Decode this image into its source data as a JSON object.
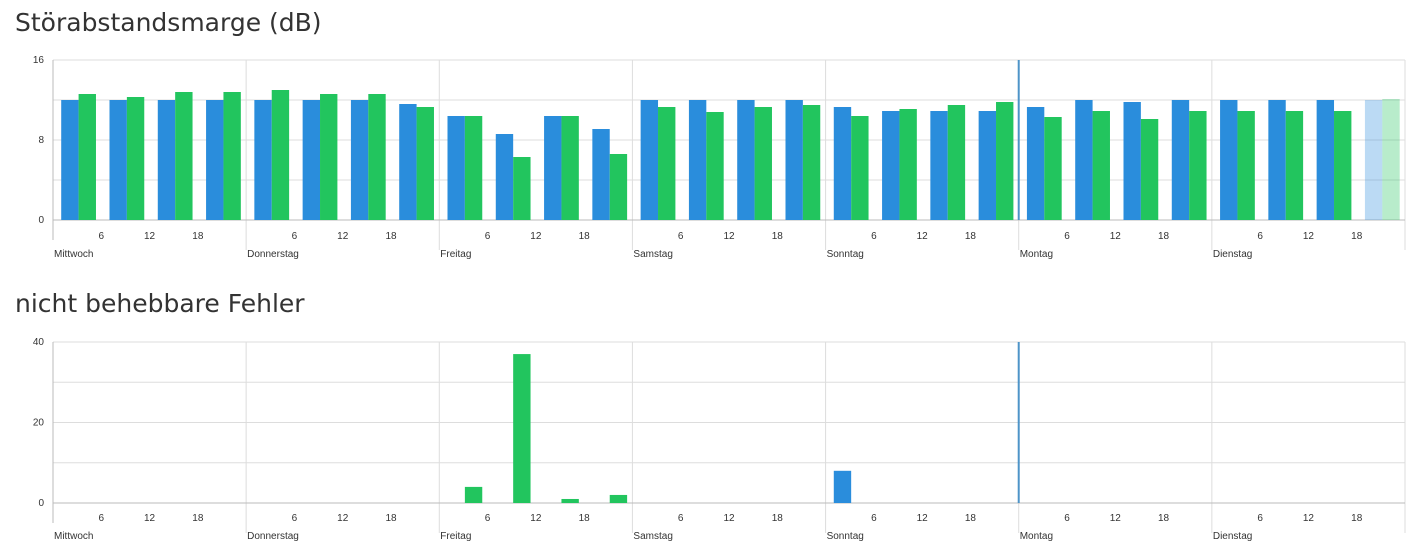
{
  "colors": {
    "series_blue": "#2a8ddc",
    "series_green": "#22c55e",
    "grid": "#dddddd",
    "axis": "#bbbbbb",
    "now_line": "#4d94c8"
  },
  "chart_data": [
    {
      "type": "bar",
      "title": "Störabstandsmarge (dB)",
      "ylim": [
        0,
        16
      ],
      "yticks": [
        "0",
        "8",
        "16"
      ],
      "days": [
        "Mittwoch",
        "Donnerstag",
        "Freitag",
        "Samstag",
        "Sonntag",
        "Montag",
        "Dienstag"
      ],
      "hour_ticks": [
        "6",
        "12",
        "18"
      ],
      "x_unit": "hours from Mittwoch 00:00, one bar pair per 6-hour interval",
      "series": [
        {
          "name": "blue",
          "values": [
            12,
            12,
            12,
            12,
            12,
            12,
            12,
            11.6,
            10.4,
            8.6,
            10.4,
            9.1,
            12,
            12,
            12,
            12,
            11.3,
            10.9,
            10.9,
            10.9,
            11.3,
            12,
            11.8,
            12,
            12,
            12,
            12,
            12
          ]
        },
        {
          "name": "green",
          "values": [
            12.6,
            12.3,
            12.8,
            12.8,
            13,
            12.6,
            12.6,
            11.3,
            10.4,
            6.3,
            10.4,
            6.6,
            11.3,
            10.8,
            11.3,
            11.5,
            10.4,
            11.1,
            11.5,
            11.8,
            10.3,
            10.9,
            10.1,
            10.9,
            10.9,
            10.9,
            10.9,
            12.1
          ]
        }
      ],
      "faded_last_pair": true,
      "now_marker_hours": 120
    },
    {
      "type": "bar",
      "title": "nicht behebbare Fehler",
      "ylim": [
        0,
        40
      ],
      "yticks": [
        "0",
        "20",
        "40"
      ],
      "days": [
        "Mittwoch",
        "Donnerstag",
        "Freitag",
        "Samstag",
        "Sonntag",
        "Montag",
        "Dienstag"
      ],
      "hour_ticks": [
        "6",
        "12",
        "18"
      ],
      "x_unit": "hours from Mittwoch 00:00, one bar pair per 6-hour interval",
      "series": [
        {
          "name": "blue",
          "values": [
            0,
            0,
            0,
            0,
            0,
            0,
            0,
            0,
            0,
            0,
            0,
            0,
            0,
            0,
            0,
            0,
            8,
            0,
            0,
            0,
            0,
            0,
            0,
            0,
            0,
            0,
            0,
            0
          ]
        },
        {
          "name": "green",
          "values": [
            0,
            0,
            0,
            0,
            0,
            0,
            0,
            0,
            4,
            37,
            1,
            2,
            0,
            0,
            0,
            0,
            0,
            0,
            0,
            0,
            0,
            0,
            0,
            0,
            0,
            0,
            0,
            0
          ]
        }
      ],
      "faded_last_pair": false,
      "now_marker_hours": 120
    }
  ]
}
